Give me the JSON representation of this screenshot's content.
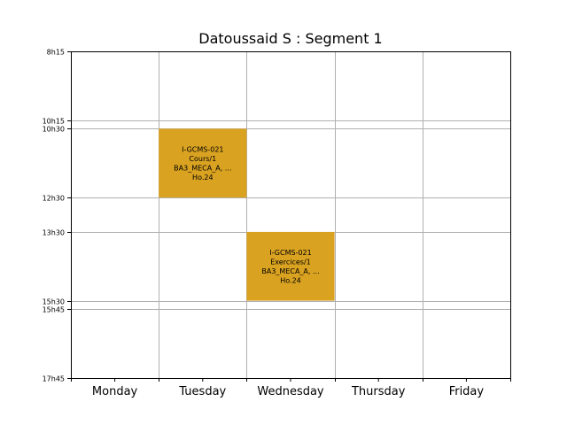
{
  "chart_data": {
    "type": "table",
    "title": "Datoussaid S : Segment 1",
    "days": [
      "Monday",
      "Tuesday",
      "Wednesday",
      "Thursday",
      "Friday"
    ],
    "time_ticks": [
      {
        "label": "8h15",
        "minutes": 495
      },
      {
        "label": "10h15",
        "minutes": 615
      },
      {
        "label": "10h30",
        "minutes": 630
      },
      {
        "label": "12h30",
        "minutes": 750
      },
      {
        "label": "13h30",
        "minutes": 810
      },
      {
        "label": "15h30",
        "minutes": 930
      },
      {
        "label": "15h45",
        "minutes": 945
      },
      {
        "label": "17h45",
        "minutes": 1065
      }
    ],
    "time_range_minutes": [
      495,
      1065
    ],
    "grid": true,
    "events": [
      {
        "day": "Tuesday",
        "start": "10h30",
        "end": "12h30",
        "start_minutes": 630,
        "end_minutes": 750,
        "lines": [
          "I-GCMS-021",
          "Cours/1",
          "BA3_MECA_A, ...",
          "Ho.24"
        ],
        "color": "#d9a221"
      },
      {
        "day": "Wednesday",
        "start": "13h30",
        "end": "15h30",
        "start_minutes": 810,
        "end_minutes": 930,
        "lines": [
          "I-GCMS-021",
          "Exercices/1",
          "BA3_MECA_A, ...",
          "Ho.24"
        ],
        "color": "#d9a221"
      }
    ]
  }
}
